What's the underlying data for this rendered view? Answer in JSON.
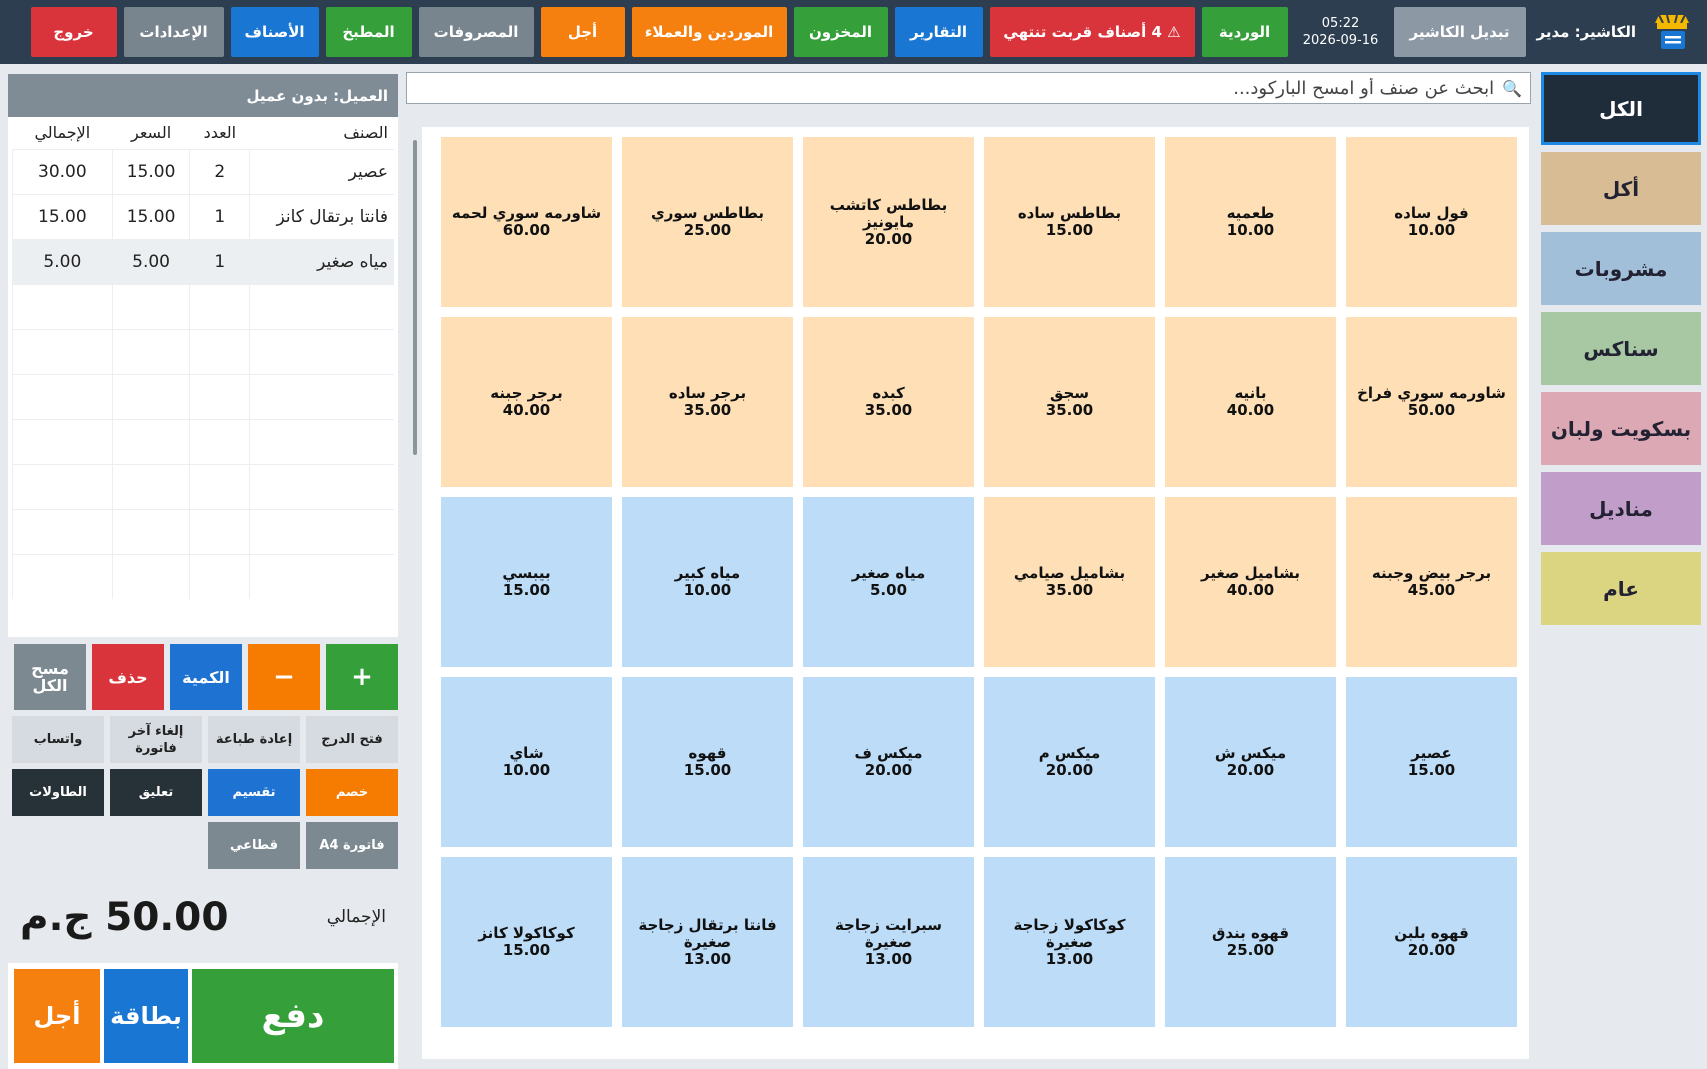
{
  "topbar": {
    "cashier": "الكاشير: مدير",
    "switch_cashier": "تبديل الكاشير",
    "time": "05:22",
    "date": "2026-09-16",
    "buttons": {
      "shift": "الوردية",
      "expiring": "⚠ 4 أصناف قربت تنتهي",
      "reports": "التقارير",
      "inventory": "المخزون",
      "suppliers": "الموردين والعملاء",
      "deferred": "أجل",
      "expenses": "المصروفات",
      "kitchen": "المطبخ",
      "items": "الأصناف",
      "settings": "الإعدادات",
      "exit": "خروج"
    }
  },
  "search": {
    "placeholder": "ابحث عن صنف أو امسح الباركود..."
  },
  "categories": [
    {
      "label": "الكل",
      "color": "#1f2d3a",
      "active": true
    },
    {
      "label": "أكل",
      "color": "#d8bd94"
    },
    {
      "label": "مشروبات",
      "color": "#a2bfd9"
    },
    {
      "label": "سناكس",
      "color": "#a8c7a3"
    },
    {
      "label": "بسكويت ولبان",
      "color": "#dba8b3"
    },
    {
      "label": "مناديل",
      "color": "#c09ec9"
    },
    {
      "label": "عام",
      "color": "#dbd481"
    }
  ],
  "products": [
    {
      "name": "فول ساده",
      "price": "10.00",
      "type": "food"
    },
    {
      "name": "طعميه",
      "price": "10.00",
      "type": "food"
    },
    {
      "name": "بطاطس ساده",
      "price": "15.00",
      "type": "food"
    },
    {
      "name": "بطاطس كاتشب مايونيز",
      "price": "20.00",
      "type": "food"
    },
    {
      "name": "بطاطس سوري",
      "price": "25.00",
      "type": "food"
    },
    {
      "name": "شاورمه سوري لحمه",
      "price": "60.00",
      "type": "food"
    },
    {
      "name": "شاورمه سوري فراخ",
      "price": "50.00",
      "type": "food"
    },
    {
      "name": "بانيه",
      "price": "40.00",
      "type": "food"
    },
    {
      "name": "سجق",
      "price": "35.00",
      "type": "food"
    },
    {
      "name": "كبده",
      "price": "35.00",
      "type": "food"
    },
    {
      "name": "برجر ساده",
      "price": "35.00",
      "type": "food"
    },
    {
      "name": "برجر جبنه",
      "price": "40.00",
      "type": "food"
    },
    {
      "name": "برجر بيض وجبنه",
      "price": "45.00",
      "type": "food"
    },
    {
      "name": "بشاميل صغير",
      "price": "40.00",
      "type": "food"
    },
    {
      "name": "بشاميل صيامي",
      "price": "35.00",
      "type": "food"
    },
    {
      "name": "مياه صغير",
      "price": "5.00",
      "type": "drink"
    },
    {
      "name": "مياه كبير",
      "price": "10.00",
      "type": "drink"
    },
    {
      "name": "بيبسي",
      "price": "15.00",
      "type": "drink"
    },
    {
      "name": "عصير",
      "price": "15.00",
      "type": "drink"
    },
    {
      "name": "ميكس ش",
      "price": "20.00",
      "type": "drink"
    },
    {
      "name": "ميكس م",
      "price": "20.00",
      "type": "drink"
    },
    {
      "name": "ميكس ف",
      "price": "20.00",
      "type": "drink"
    },
    {
      "name": "قهوه",
      "price": "15.00",
      "type": "drink"
    },
    {
      "name": "شاي",
      "price": "10.00",
      "type": "drink"
    },
    {
      "name": "قهوه بلبن",
      "price": "20.00",
      "type": "drink"
    },
    {
      "name": "قهوه بندق",
      "price": "25.00",
      "type": "drink"
    },
    {
      "name": "كوكاكولا زجاجة صغيرة",
      "price": "13.00",
      "type": "drink"
    },
    {
      "name": "سبرايت زجاجة صغيرة",
      "price": "13.00",
      "type": "drink"
    },
    {
      "name": "فانتا برتقال زجاجة صغيرة",
      "price": "13.00",
      "type": "drink"
    },
    {
      "name": "كوكاكولا كانز",
      "price": "15.00",
      "type": "drink"
    }
  ],
  "order": {
    "customer": "العميل: بدون عميل",
    "columns": {
      "item": "الصنف",
      "qty": "العدد",
      "price": "السعر",
      "total": "الإجمالي"
    },
    "lines": [
      {
        "item": "عصير",
        "qty": "2",
        "price": "15.00",
        "total": "30.00"
      },
      {
        "item": "فانتا برتقال كانز",
        "qty": "1",
        "price": "15.00",
        "total": "15.00"
      },
      {
        "item": "مياه صغير",
        "qty": "1",
        "price": "5.00",
        "total": "5.00",
        "selected": true
      }
    ],
    "empty_rows": 7
  },
  "actions": {
    "plus": "+",
    "minus": "−",
    "quantity": "الكمية",
    "delete": "حذف",
    "clear_all": "مسح الكل",
    "open_drawer": "فتح الدرج",
    "reprint": "إعادة طباعة",
    "cancel_last": "إلغاء آخر فاتورة",
    "whatsapp": "واتساب",
    "discount": "خصم",
    "split": "تقسيم",
    "hold": "تعليق",
    "tables": "الطاولات",
    "invoice_a4": "فاتورة A4",
    "wholesale": "قطاعي"
  },
  "totals": {
    "label": "الإجمالي",
    "value": "50.00 ج.م"
  },
  "pay": {
    "pay": "دفع",
    "card": "بطاقة",
    "deferred": "أجل"
  }
}
